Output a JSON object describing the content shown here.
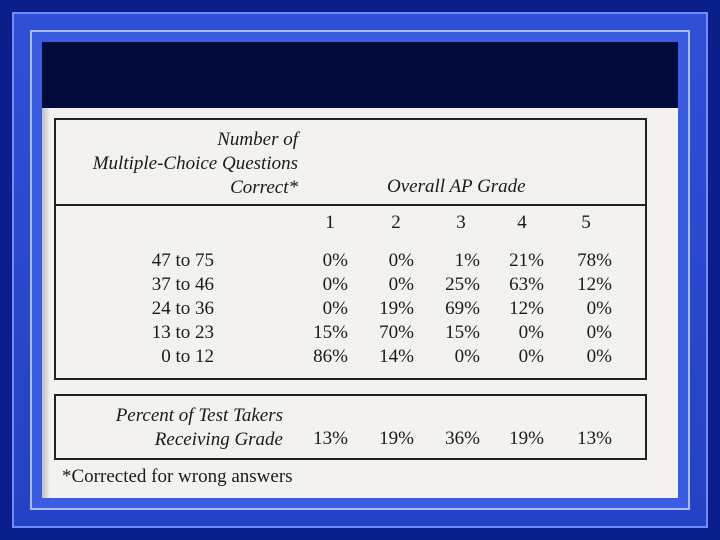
{
  "table": {
    "row_header": [
      "Number of",
      "Multiple-Choice Questions",
      "Correct*"
    ],
    "column_group_header": "Overall AP Grade",
    "grade_columns": [
      "1",
      "2",
      "3",
      "4",
      "5"
    ],
    "rows": [
      {
        "range": "47 to 75",
        "values": [
          "0%",
          "0%",
          "1%",
          "21%",
          "78%"
        ]
      },
      {
        "range": "37 to 46",
        "values": [
          "0%",
          "0%",
          "25%",
          "63%",
          "12%"
        ]
      },
      {
        "range": "24 to 36",
        "values": [
          "0%",
          "19%",
          "69%",
          "12%",
          "0%"
        ]
      },
      {
        "range": "13 to 23",
        "values": [
          "15%",
          "70%",
          "15%",
          "0%",
          "0%"
        ]
      },
      {
        "range": "0 to 12",
        "values": [
          "86%",
          "14%",
          "0%",
          "0%",
          "0%"
        ]
      }
    ],
    "summary_label": [
      "Percent of Test Takers",
      "Receiving Grade"
    ],
    "summary_values": [
      "13%",
      "19%",
      "36%",
      "19%",
      "13%"
    ],
    "footnote": "*Corrected for wrong answers"
  },
  "colors": {
    "background": "#0b1f8c",
    "frame": "#2f4fd6",
    "header_band": "#020a3c",
    "paper": "#f3f2ee"
  }
}
